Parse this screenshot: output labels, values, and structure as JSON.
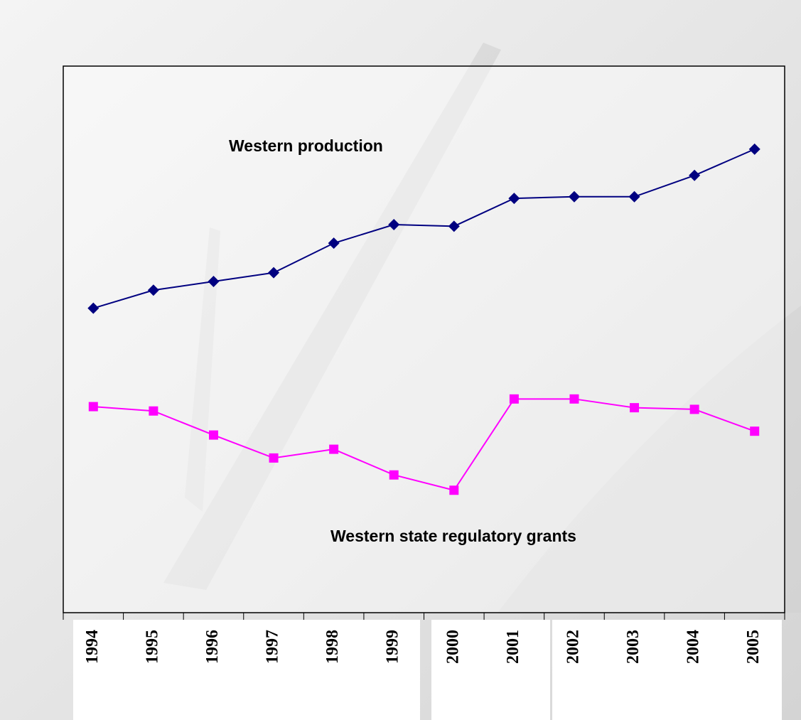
{
  "chart_data": {
    "type": "line",
    "categories": [
      "1994",
      "1995",
      "1996",
      "1997",
      "1998",
      "1999",
      "2000",
      "2001",
      "2002",
      "2003",
      "2004",
      "2005"
    ],
    "series": [
      {
        "name": "Western production",
        "color": "#000080",
        "marker": "diamond",
        "values": [
          55.7,
          59.0,
          60.6,
          62.2,
          67.6,
          71.0,
          70.7,
          75.8,
          76.1,
          76.1,
          80.0,
          84.8
        ]
      },
      {
        "name": "Western state regulatory grants",
        "color": "#ff00ff",
        "marker": "square",
        "values": [
          37.7,
          36.9,
          32.5,
          28.3,
          29.9,
          25.2,
          22.4,
          39.1,
          39.1,
          37.5,
          37.2,
          33.2
        ]
      }
    ],
    "ylim": [
      0,
      100
    ]
  }
}
